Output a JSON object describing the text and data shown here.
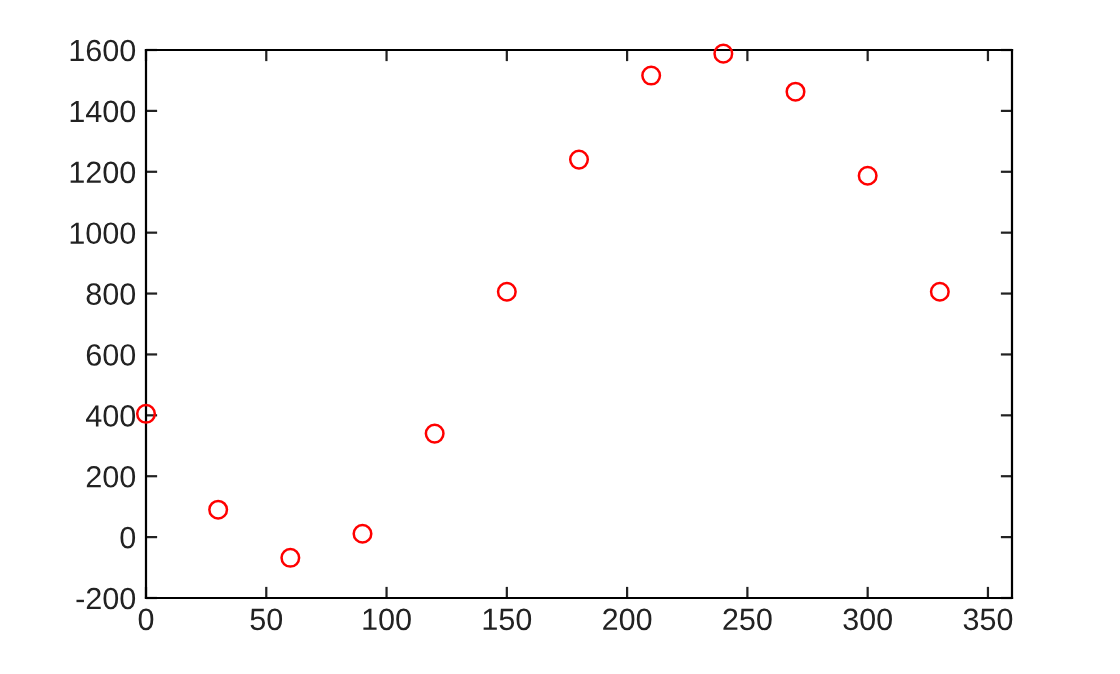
{
  "chart_data": {
    "type": "scatter",
    "x": [
      0,
      30,
      60,
      90,
      120,
      150,
      180,
      210,
      240,
      270,
      300,
      330
    ],
    "series": [
      {
        "color": "#ff0000",
        "values": [
          405,
          90,
          -68,
          11,
          340,
          806,
          1240,
          1516,
          1588,
          1463,
          1187,
          806
        ]
      }
    ],
    "marker": "circle",
    "xlim": [
      0,
      360
    ],
    "xticks": [
      0,
      50,
      100,
      150,
      200,
      250,
      300,
      350
    ],
    "ylim": [
      -200,
      1600
    ],
    "yticks": [
      -200,
      0,
      200,
      400,
      600,
      800,
      1000,
      1200,
      1400,
      1600
    ],
    "grid": false,
    "legend": false
  }
}
